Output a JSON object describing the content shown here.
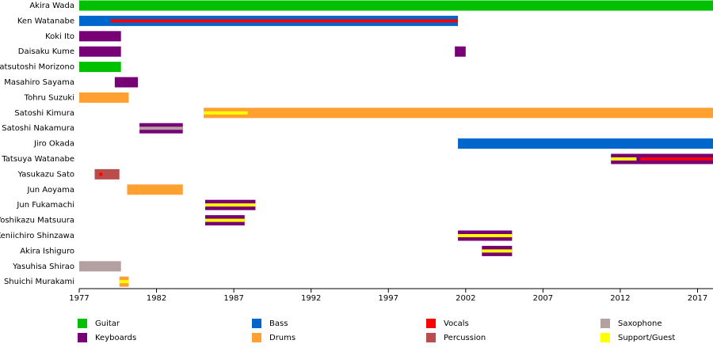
{
  "chart_data": {
    "type": "timeline",
    "xlim": [
      1977,
      2018
    ],
    "xticks": [
      1977,
      1982,
      1987,
      1992,
      1997,
      2002,
      2007,
      2012,
      2017
    ],
    "roles": [
      {
        "name": "Guitar",
        "color": "#00c000"
      },
      {
        "name": "Bass",
        "color": "#0066cc"
      },
      {
        "name": "Vocals",
        "color": "#ff0000"
      },
      {
        "name": "Saxophone",
        "color": "#b4a0a0"
      },
      {
        "name": "Keyboards",
        "color": "#770077"
      },
      {
        "name": "Drums",
        "color": "#ffa030"
      },
      {
        "name": "Percussion",
        "color": "#bb4c4c"
      },
      {
        "name": "Support/Guest",
        "color": "#ffff00"
      }
    ],
    "members": [
      {
        "name": "Akira Wada",
        "bars": [
          {
            "role": "Guitar",
            "start": 1977,
            "end": 2018
          }
        ],
        "stripes": []
      },
      {
        "name": "Ken Watanabe",
        "bars": [
          {
            "role": "Bass",
            "start": 1977,
            "end": 2001.5
          }
        ],
        "stripes": [
          {
            "role": "Vocals",
            "start": 1979,
            "end": 2001.5
          }
        ]
      },
      {
        "name": "Koki Ito",
        "bars": [
          {
            "role": "Keyboards",
            "start": 1977,
            "end": 1979.7
          }
        ],
        "stripes": []
      },
      {
        "name": "Daisaku Kume",
        "bars": [
          {
            "role": "Keyboards",
            "start": 1977,
            "end": 1979.7
          },
          {
            "role": "Keyboards",
            "start": 2001.3,
            "end": 2002.0
          }
        ],
        "stripes": []
      },
      {
        "name": "Katsutoshi Morizono",
        "bars": [
          {
            "role": "Guitar",
            "start": 1977,
            "end": 1979.7
          }
        ],
        "stripes": []
      },
      {
        "name": "Masahiro Sayama",
        "bars": [
          {
            "role": "Keyboards",
            "start": 1979.3,
            "end": 1980.8
          }
        ],
        "stripes": []
      },
      {
        "name": "Tohru Suzuki",
        "bars": [
          {
            "role": "Drums",
            "start": 1977,
            "end": 1980.2
          }
        ],
        "stripes": []
      },
      {
        "name": "Satoshi Kimura",
        "bars": [
          {
            "role": "Drums",
            "start": 1985.05,
            "end": 2018
          }
        ],
        "stripes": [
          {
            "role": "Support/Guest",
            "start": 1985.05,
            "end": 1987.9
          }
        ]
      },
      {
        "name": "Satoshi Nakamura",
        "bars": [
          {
            "role": "Keyboards",
            "start": 1980.9,
            "end": 1983.7
          }
        ],
        "stripes": [
          {
            "role": "Saxophone",
            "start": 1980.9,
            "end": 1983.7
          }
        ]
      },
      {
        "name": "Jiro Okada",
        "bars": [
          {
            "role": "Bass",
            "start": 2001.5,
            "end": 2018
          }
        ],
        "stripes": []
      },
      {
        "name": "Tatsuya Watanabe",
        "bars": [
          {
            "role": "Keyboards",
            "start": 2011.4,
            "end": 2018
          }
        ],
        "stripes": [
          {
            "role": "Support/Guest",
            "start": 2011.4,
            "end": 2013.05
          },
          {
            "role": "Vocals",
            "start": 2013.3,
            "end": 2018
          }
        ]
      },
      {
        "name": "Yasukazu Sato",
        "bars": [
          {
            "role": "Percussion",
            "start": 1978.0,
            "end": 1979.6
          }
        ],
        "stripes": [
          {
            "role": "Vocals",
            "start": 1978.3,
            "end": 1978.5
          }
        ]
      },
      {
        "name": "Jun Aoyama",
        "bars": [
          {
            "role": "Drums",
            "start": 1980.1,
            "end": 1983.7
          }
        ],
        "stripes": []
      },
      {
        "name": "Jun Fukamachi",
        "bars": [
          {
            "role": "Keyboards",
            "start": 1985.15,
            "end": 1988.4
          }
        ],
        "stripes": [
          {
            "role": "Support/Guest",
            "start": 1985.15,
            "end": 1988.4
          }
        ]
      },
      {
        "name": "Yoshikazu Matsuura",
        "bars": [
          {
            "role": "Keyboards",
            "start": 1985.15,
            "end": 1987.7
          }
        ],
        "stripes": [
          {
            "role": "Support/Guest",
            "start": 1985.15,
            "end": 1987.7
          }
        ]
      },
      {
        "name": "Keniichiro Shinzawa",
        "bars": [
          {
            "role": "Keyboards",
            "start": 2001.5,
            "end": 2005.0
          }
        ],
        "stripes": [
          {
            "role": "Support/Guest",
            "start": 2001.5,
            "end": 2005.0
          }
        ]
      },
      {
        "name": "Akira Ishiguro",
        "bars": [
          {
            "role": "Keyboards",
            "start": 2003.05,
            "end": 2005.0
          }
        ],
        "stripes": [
          {
            "role": "Support/Guest",
            "start": 2003.05,
            "end": 2005.0
          }
        ]
      },
      {
        "name": "Yasuhisa Shirao",
        "bars": [
          {
            "role": "Saxophone",
            "start": 1977,
            "end": 1979.7
          }
        ],
        "stripes": []
      },
      {
        "name": "Shuichi Murakami",
        "bars": [
          {
            "role": "Drums",
            "start": 1979.6,
            "end": 1980.2
          }
        ],
        "stripes": [
          {
            "role": "Support/Guest",
            "start": 1979.6,
            "end": 1980.2
          }
        ]
      }
    ]
  }
}
